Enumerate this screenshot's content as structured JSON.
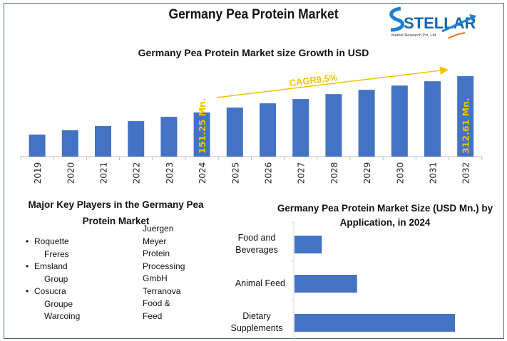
{
  "title": "Germany Pea Protein Market",
  "logo": {
    "name": "STELLAR",
    "tagline": "Market Research Pvt. Ltd."
  },
  "key_players": {
    "title": "Major Key Players in the Germany Pea Protein Market",
    "left": [
      {
        "first": "Roquette",
        "rest": [
          "Freres"
        ]
      },
      {
        "first": "Emsland",
        "rest": [
          "Group"
        ]
      },
      {
        "first": "Cosucra",
        "rest": [
          "Groupe",
          "Warcoing"
        ]
      }
    ],
    "right": [
      "Juergen",
      "Meyer",
      "Protein",
      "Processing",
      "GmbH",
      "Terranova",
      "Food &",
      "Feed"
    ]
  },
  "chart_data": [
    {
      "type": "bar",
      "title": "Germany Pea Protein Market size Growth in USD",
      "categories": [
        "2019",
        "2020",
        "2021",
        "2022",
        "2023",
        "2024",
        "2025",
        "2026",
        "2027",
        "2028",
        "2029",
        "2030",
        "2031",
        "2032"
      ],
      "values": [
        53,
        72,
        91,
        113,
        132,
        151.25,
        173,
        192,
        211,
        233,
        252,
        271,
        290,
        312.61
      ],
      "data_labels": {
        "2024": "151.25 Mn.",
        "2032": "312.61 Mn."
      },
      "annotation": "CAGR9.5%",
      "ylim": [
        -45,
        330
      ],
      "grid": false,
      "colors": {
        "bar": "#4472c4",
        "annotation": "#f2c200"
      }
    },
    {
      "type": "bar",
      "orientation": "horizontal",
      "title": "Germany Pea Protein Market Size (USD Mn.) by Application, in 2024",
      "categories": [
        "Food and Beverages",
        "Animal Feed",
        "Dietary Supplements"
      ],
      "values": [
        17,
        39,
        100
      ],
      "xlim": [
        0,
        100
      ],
      "grid": false,
      "colors": {
        "bar": "#4472c4"
      }
    }
  ]
}
